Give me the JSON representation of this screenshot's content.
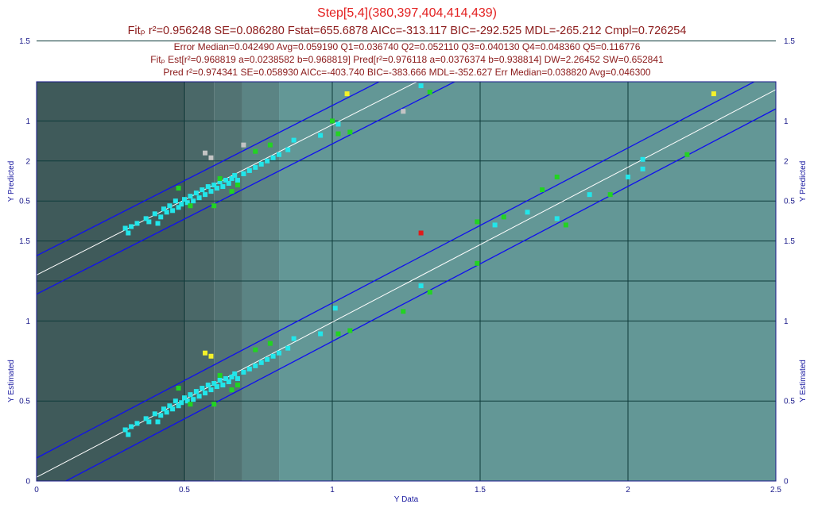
{
  "header": {
    "title": "Step[5,4](380,397,404,414,439)",
    "fit_line": "Fitₚ r²=0.956248 SE=0.086280 Fstat=655.6878 AICc=-313.117 BIC=-292.525 MDL=-265.212 Cmpl=0.726254",
    "error_line": "Error Median=0.042490 Avg=0.059190 Q1=0.036740 Q2=0.052110 Q3=0.040130 Q4=0.048360 Q5=0.116776",
    "est_line": "Fitₚ Est[r²=0.968819 a=0.0238582 b=0.968819] Pred[r²=0.976118 a=0.0376374 b=0.938814] DW=2.26452 SW=0.652841",
    "pred_line": "Pred r²=0.974341 SE=0.058930 AICc=-403.740 BIC=-383.666 MDL=-352.627 Err Median=0.038820 Avg=0.046300"
  },
  "chart_data": [
    {
      "type": "scatter",
      "panel": "top",
      "xlabel": "",
      "ylabel": "Y Predicted",
      "xlim": [
        0,
        2.5
      ],
      "ylim": [
        0,
        2.5
      ],
      "x_ticks": [],
      "y_ticks": [
        "0.5",
        "1",
        "1.5",
        "2",
        "2.5"
      ],
      "fit_line": {
        "a": 0.0376374,
        "b": 0.938814
      },
      "band_halfwidth": 0.12,
      "grid": true,
      "colors": {
        "cyan": "#22e6ea",
        "green": "#22d322",
        "gray": "#c4c4c4",
        "yellow": "#f4f22a",
        "red": "#e01a1a"
      },
      "points": [
        [
          0.3,
          0.33,
          "cyan"
        ],
        [
          0.31,
          0.3,
          "cyan"
        ],
        [
          0.32,
          0.34,
          "cyan"
        ],
        [
          0.34,
          0.36,
          "cyan"
        ],
        [
          0.37,
          0.39,
          "cyan"
        ],
        [
          0.38,
          0.37,
          "cyan"
        ],
        [
          0.4,
          0.42,
          "cyan"
        ],
        [
          0.41,
          0.36,
          "cyan"
        ],
        [
          0.42,
          0.4,
          "cyan"
        ],
        [
          0.43,
          0.45,
          "cyan"
        ],
        [
          0.44,
          0.43,
          "cyan"
        ],
        [
          0.45,
          0.47,
          "cyan"
        ],
        [
          0.46,
          0.44,
          "cyan"
        ],
        [
          0.47,
          0.5,
          "cyan"
        ],
        [
          0.48,
          0.46,
          "cyan"
        ],
        [
          0.49,
          0.48,
          "cyan"
        ],
        [
          0.5,
          0.51,
          "cyan"
        ],
        [
          0.51,
          0.49,
          "cyan"
        ],
        [
          0.52,
          0.53,
          "cyan"
        ],
        [
          0.53,
          0.5,
          "cyan"
        ],
        [
          0.54,
          0.55,
          "cyan"
        ],
        [
          0.55,
          0.52,
          "cyan"
        ],
        [
          0.56,
          0.57,
          "cyan"
        ],
        [
          0.57,
          0.54,
          "cyan"
        ],
        [
          0.58,
          0.59,
          "cyan"
        ],
        [
          0.59,
          0.56,
          "cyan"
        ],
        [
          0.6,
          0.6,
          "cyan"
        ],
        [
          0.61,
          0.58,
          "cyan"
        ],
        [
          0.62,
          0.62,
          "cyan"
        ],
        [
          0.63,
          0.59,
          "cyan"
        ],
        [
          0.64,
          0.63,
          "cyan"
        ],
        [
          0.65,
          0.61,
          "cyan"
        ],
        [
          0.66,
          0.64,
          "cyan"
        ],
        [
          0.67,
          0.66,
          "cyan"
        ],
        [
          0.68,
          0.63,
          "cyan"
        ],
        [
          0.7,
          0.67,
          "cyan"
        ],
        [
          0.72,
          0.69,
          "cyan"
        ],
        [
          0.74,
          0.71,
          "cyan"
        ],
        [
          0.76,
          0.73,
          "cyan"
        ],
        [
          0.78,
          0.75,
          "cyan"
        ],
        [
          0.8,
          0.77,
          "cyan"
        ],
        [
          0.82,
          0.79,
          "cyan"
        ],
        [
          0.85,
          0.82,
          "cyan"
        ],
        [
          0.87,
          0.88,
          "cyan"
        ],
        [
          0.96,
          0.91,
          "cyan"
        ],
        [
          1.02,
          0.98,
          "cyan"
        ],
        [
          1.3,
          1.22,
          "cyan"
        ],
        [
          1.76,
          1.64,
          "cyan"
        ],
        [
          1.87,
          1.8,
          "cyan"
        ],
        [
          1.94,
          1.79,
          "cyan"
        ],
        [
          2.0,
          1.9,
          "cyan"
        ],
        [
          2.05,
          1.95,
          "cyan"
        ],
        [
          2.05,
          2.02,
          "cyan"
        ],
        [
          2.2,
          2.04,
          "cyan"
        ],
        [
          0.48,
          0.58,
          "green"
        ],
        [
          0.52,
          0.47,
          "green"
        ],
        [
          0.6,
          0.47,
          "green"
        ],
        [
          0.62,
          0.64,
          "green"
        ],
        [
          0.66,
          0.56,
          "green"
        ],
        [
          0.68,
          0.6,
          "green"
        ],
        [
          0.74,
          0.81,
          "green"
        ],
        [
          0.79,
          0.85,
          "green"
        ],
        [
          1.0,
          1.0,
          "green"
        ],
        [
          1.02,
          0.92,
          "green"
        ],
        [
          1.06,
          0.93,
          "green"
        ],
        [
          1.33,
          1.18,
          "green"
        ],
        [
          1.49,
          1.38,
          "green"
        ],
        [
          1.52,
          1.62,
          "green"
        ],
        [
          1.58,
          1.65,
          "green"
        ],
        [
          1.66,
          1.7,
          "green"
        ],
        [
          1.76,
          1.8,
          "green"
        ],
        [
          0.57,
          0.8,
          "gray"
        ],
        [
          0.59,
          0.77,
          "gray"
        ],
        [
          0.7,
          0.85,
          "gray"
        ],
        [
          1.24,
          1.06,
          "gray"
        ],
        [
          1.3,
          1.55,
          "gray"
        ],
        [
          1.48,
          1.61,
          "gray"
        ],
        [
          1.71,
          1.82,
          "gray"
        ],
        [
          1.76,
          1.9,
          "gray"
        ],
        [
          1.79,
          1.6,
          "gray"
        ],
        [
          2.29,
          2.42,
          "gray"
        ],
        [
          1.05,
          1.17,
          "yellow"
        ]
      ]
    },
    {
      "type": "scatter",
      "panel": "bottom",
      "xlabel": "Y Data",
      "ylabel": "Y Estimated",
      "xlim": [
        0,
        2.5
      ],
      "ylim": [
        0,
        2.5
      ],
      "x_ticks": [
        "0",
        "0.5",
        "1",
        "1.5",
        "2",
        "2.5"
      ],
      "y_ticks": [
        "0",
        "0.5",
        "1",
        "1.5",
        "2"
      ],
      "fit_line": {
        "a": 0.0238582,
        "b": 0.968819
      },
      "band_halfwidth": 0.12,
      "grid": true,
      "colors": {
        "cyan": "#22e6ea",
        "green": "#22d322",
        "gray": "#c4c4c4",
        "yellow": "#f4f22a",
        "red": "#e01a1a"
      },
      "points": [
        [
          0.3,
          0.32,
          "cyan"
        ],
        [
          0.31,
          0.29,
          "cyan"
        ],
        [
          0.32,
          0.34,
          "cyan"
        ],
        [
          0.34,
          0.36,
          "cyan"
        ],
        [
          0.37,
          0.39,
          "cyan"
        ],
        [
          0.38,
          0.37,
          "cyan"
        ],
        [
          0.4,
          0.42,
          "cyan"
        ],
        [
          0.41,
          0.37,
          "cyan"
        ],
        [
          0.42,
          0.41,
          "cyan"
        ],
        [
          0.43,
          0.45,
          "cyan"
        ],
        [
          0.44,
          0.43,
          "cyan"
        ],
        [
          0.45,
          0.47,
          "cyan"
        ],
        [
          0.46,
          0.45,
          "cyan"
        ],
        [
          0.47,
          0.5,
          "cyan"
        ],
        [
          0.48,
          0.47,
          "cyan"
        ],
        [
          0.49,
          0.49,
          "cyan"
        ],
        [
          0.5,
          0.52,
          "cyan"
        ],
        [
          0.51,
          0.5,
          "cyan"
        ],
        [
          0.52,
          0.54,
          "cyan"
        ],
        [
          0.53,
          0.51,
          "cyan"
        ],
        [
          0.54,
          0.56,
          "cyan"
        ],
        [
          0.55,
          0.53,
          "cyan"
        ],
        [
          0.56,
          0.58,
          "cyan"
        ],
        [
          0.57,
          0.55,
          "cyan"
        ],
        [
          0.58,
          0.6,
          "cyan"
        ],
        [
          0.59,
          0.57,
          "cyan"
        ],
        [
          0.6,
          0.61,
          "cyan"
        ],
        [
          0.61,
          0.59,
          "cyan"
        ],
        [
          0.62,
          0.63,
          "cyan"
        ],
        [
          0.63,
          0.6,
          "cyan"
        ],
        [
          0.64,
          0.64,
          "cyan"
        ],
        [
          0.65,
          0.62,
          "cyan"
        ],
        [
          0.66,
          0.65,
          "cyan"
        ],
        [
          0.67,
          0.67,
          "cyan"
        ],
        [
          0.68,
          0.64,
          "cyan"
        ],
        [
          0.7,
          0.68,
          "cyan"
        ],
        [
          0.72,
          0.7,
          "cyan"
        ],
        [
          0.74,
          0.72,
          "cyan"
        ],
        [
          0.76,
          0.74,
          "cyan"
        ],
        [
          0.78,
          0.76,
          "cyan"
        ],
        [
          0.8,
          0.78,
          "cyan"
        ],
        [
          0.82,
          0.8,
          "cyan"
        ],
        [
          0.85,
          0.83,
          "cyan"
        ],
        [
          0.87,
          0.89,
          "cyan"
        ],
        [
          0.96,
          0.92,
          "cyan"
        ],
        [
          1.01,
          1.08,
          "cyan"
        ],
        [
          1.3,
          1.22,
          "cyan"
        ],
        [
          1.55,
          1.6,
          "cyan"
        ],
        [
          1.66,
          1.68,
          "cyan"
        ],
        [
          1.76,
          1.64,
          "cyan"
        ],
        [
          1.87,
          1.79,
          "cyan"
        ],
        [
          2.0,
          1.9,
          "cyan"
        ],
        [
          2.05,
          1.95,
          "cyan"
        ],
        [
          2.05,
          2.01,
          "cyan"
        ],
        [
          0.48,
          0.58,
          "green"
        ],
        [
          0.52,
          0.48,
          "green"
        ],
        [
          0.6,
          0.48,
          "green"
        ],
        [
          0.62,
          0.66,
          "green"
        ],
        [
          0.66,
          0.57,
          "green"
        ],
        [
          0.68,
          0.6,
          "green"
        ],
        [
          0.74,
          0.82,
          "green"
        ],
        [
          0.79,
          0.86,
          "green"
        ],
        [
          1.02,
          0.92,
          "green"
        ],
        [
          1.06,
          0.94,
          "green"
        ],
        [
          1.24,
          1.06,
          "green"
        ],
        [
          1.33,
          1.18,
          "green"
        ],
        [
          1.49,
          1.36,
          "green"
        ],
        [
          1.49,
          1.62,
          "green"
        ],
        [
          1.58,
          1.65,
          "green"
        ],
        [
          1.71,
          1.82,
          "green"
        ],
        [
          1.76,
          1.9,
          "green"
        ],
        [
          1.79,
          1.6,
          "green"
        ],
        [
          1.94,
          1.79,
          "green"
        ],
        [
          2.2,
          2.04,
          "green"
        ],
        [
          0.57,
          0.8,
          "yellow"
        ],
        [
          0.59,
          0.78,
          "yellow"
        ],
        [
          2.29,
          2.42,
          "yellow"
        ],
        [
          1.3,
          1.55,
          "red"
        ]
      ]
    }
  ]
}
